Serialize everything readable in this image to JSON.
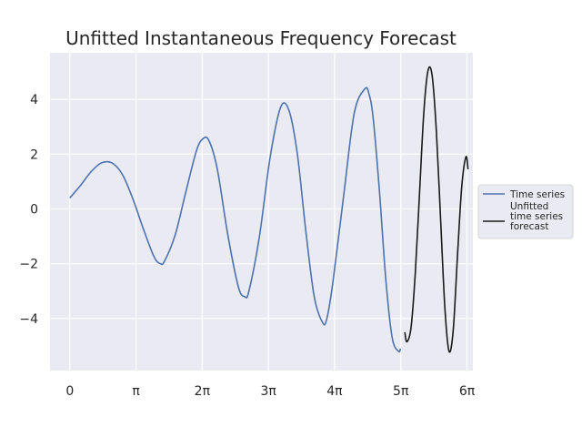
{
  "chart_data": {
    "type": "line",
    "title": "Unfitted Instantaneous Frequency Forecast",
    "xlabel": "",
    "ylabel": "",
    "xlim": [
      -0.94,
      19.13
    ],
    "ylim": [
      -5.9,
      5.7
    ],
    "grid": true,
    "background_color": "#eaeaf2",
    "x_ticks": [
      {
        "value": 0,
        "label": "0"
      },
      {
        "value": 3.14159,
        "label": "π"
      },
      {
        "value": 6.28319,
        "label": "2π"
      },
      {
        "value": 9.42478,
        "label": "3π"
      },
      {
        "value": 12.56637,
        "label": "4π"
      },
      {
        "value": 15.70796,
        "label": "5π"
      },
      {
        "value": 18.84956,
        "label": "6π"
      }
    ],
    "y_ticks": [
      {
        "value": 4,
        "label": "4"
      },
      {
        "value": 2,
        "label": "2"
      },
      {
        "value": 0,
        "label": "0"
      },
      {
        "value": -2,
        "label": "−2"
      },
      {
        "value": -4,
        "label": "−4"
      }
    ],
    "legend": {
      "placement": "outside-right",
      "entries": [
        {
          "label_lines": [
            "Time series"
          ],
          "color": "#4c72b0"
        },
        {
          "label_lines": [
            "Unfitted",
            "time series",
            "forecast"
          ],
          "color": "#1a1a1a"
        }
      ]
    },
    "series": [
      {
        "name": "Time series",
        "color": "#4c72b0",
        "x": [
          0.0,
          0.5,
          1.0,
          1.5,
          2.0,
          2.5,
          3.0,
          3.5,
          4.0,
          4.3,
          4.5,
          5.0,
          5.5,
          6.0,
          6.3,
          6.6,
          7.0,
          7.5,
          8.0,
          8.3,
          8.5,
          9.0,
          9.5,
          10.0,
          10.4,
          10.8,
          11.2,
          11.6,
          12.0,
          12.2,
          12.5,
          13.0,
          13.5,
          14.0,
          14.2,
          14.4,
          14.7,
          15.0,
          15.3,
          15.6,
          15.7
        ],
        "y": [
          0.4,
          0.85,
          1.35,
          1.68,
          1.68,
          1.25,
          0.35,
          -0.75,
          -1.75,
          -2.0,
          -1.9,
          -0.95,
          0.6,
          2.1,
          2.55,
          2.5,
          1.45,
          -0.95,
          -2.85,
          -3.2,
          -3.0,
          -1.0,
          1.85,
          3.7,
          3.6,
          2.0,
          -0.8,
          -3.2,
          -4.15,
          -4.0,
          -2.6,
          0.5,
          3.5,
          4.38,
          4.2,
          3.3,
          0.6,
          -2.6,
          -4.7,
          -5.2,
          -5.1
        ]
      },
      {
        "name": "Unfitted time series forecast",
        "color": "#1a1a1a",
        "x": [
          15.9,
          16.0,
          16.2,
          16.4,
          16.6,
          16.8,
          17.0,
          17.2,
          17.4,
          17.6,
          17.8,
          18.0,
          18.2,
          18.4,
          18.6,
          18.8,
          18.9
        ],
        "y": [
          -4.5,
          -4.85,
          -4.3,
          -2.3,
          0.6,
          3.5,
          5.05,
          4.85,
          2.8,
          -0.4,
          -3.6,
          -5.2,
          -4.4,
          -1.7,
          0.8,
          1.9,
          1.45
        ]
      }
    ]
  }
}
